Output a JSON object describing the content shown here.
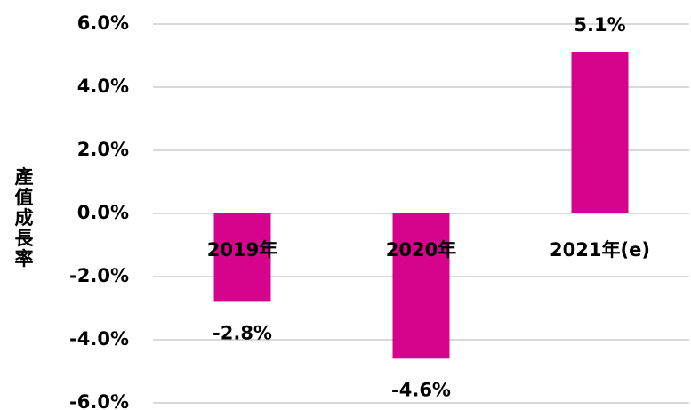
{
  "chart_data": {
    "type": "bar",
    "y_label": "產值成長率",
    "categories": [
      "2019年",
      "2020年",
      "2021年(e)"
    ],
    "values": [
      -2.8,
      -4.6,
      5.1
    ],
    "value_labels": [
      "-2.8%",
      "-4.6%",
      "5.1%"
    ],
    "color": "#d6048c",
    "ylim": [
      -6,
      6
    ],
    "yticks": [
      {
        "value": -6,
        "label": "-6.0%"
      },
      {
        "value": -4,
        "label": "-4.0%"
      },
      {
        "value": -2,
        "label": "-2.0%"
      },
      {
        "value": 0,
        "label": "0.0%"
      },
      {
        "value": 2,
        "label": "2.0%"
      },
      {
        "value": 4,
        "label": "4.0%"
      },
      {
        "value": 6,
        "label": "6.0%"
      }
    ],
    "grid": true
  }
}
